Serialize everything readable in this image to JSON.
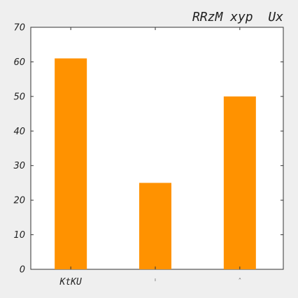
{
  "chart_data": {
    "type": "bar",
    "title": "RRzM xyp  Ux",
    "categories": [
      "KtKU",
      "ı",
      "ᴬ"
    ],
    "values": [
      61,
      25,
      50
    ],
    "ylim": [
      0,
      70
    ],
    "yticks": [
      0,
      10,
      20,
      30,
      40,
      50,
      60,
      70
    ],
    "xlabel": "",
    "ylabel": "",
    "grid": false,
    "bar_color": "#ff9200"
  },
  "colors": {
    "background": "#efefef",
    "plot_background": "#ffffff",
    "axis": "#333333",
    "bar": "#ff9200"
  }
}
